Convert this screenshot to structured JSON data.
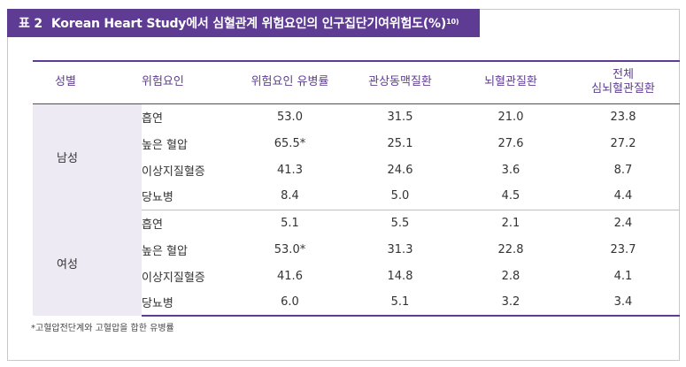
{
  "title": {
    "label": "표 2",
    "text": "Korean Heart Study에서 심혈관계 위험요인의 인구집단기여위험도(%)",
    "sup": "10)"
  },
  "headers": {
    "sex": "성별",
    "factor": "위험요인",
    "prevalence": "위험요인 유병률",
    "chd": "관상동맥질환",
    "stroke": "뇌혈관질환",
    "total_line1": "전체",
    "total_line2": "심뇌혈관질환"
  },
  "groups": [
    {
      "sex": "남성",
      "rows": [
        {
          "factor": "흡연",
          "prevalence": "53.0",
          "chd": "31.5",
          "stroke": "21.0",
          "total": "23.8"
        },
        {
          "factor": "높은 혈압",
          "prevalence": "65.5*",
          "chd": "25.1",
          "stroke": "27.6",
          "total": "27.2"
        },
        {
          "factor": "이상지질혈증",
          "prevalence": "41.3",
          "chd": "24.6",
          "stroke": "3.6",
          "total": "8.7"
        },
        {
          "factor": "당뇨병",
          "prevalence": "8.4",
          "chd": "5.0",
          "stroke": "4.5",
          "total": "4.4"
        }
      ]
    },
    {
      "sex": "여성",
      "rows": [
        {
          "factor": "흡연",
          "prevalence": "5.1",
          "chd": "5.5",
          "stroke": "2.1",
          "total": "2.4"
        },
        {
          "factor": "높은 혈압",
          "prevalence": "53.0*",
          "chd": "31.3",
          "stroke": "22.8",
          "total": "23.7"
        },
        {
          "factor": "이상지질혈증",
          "prevalence": "41.6",
          "chd": "14.8",
          "stroke": "2.8",
          "total": "4.1"
        },
        {
          "factor": "당뇨병",
          "prevalence": "6.0",
          "chd": "5.1",
          "stroke": "3.2",
          "total": "3.4"
        }
      ]
    }
  ],
  "footnote": "*고혈압전단계와 고혈압을 합한 유병률",
  "colors": {
    "accent": "#5e3c93",
    "group_bg": "#eeeaf3"
  }
}
